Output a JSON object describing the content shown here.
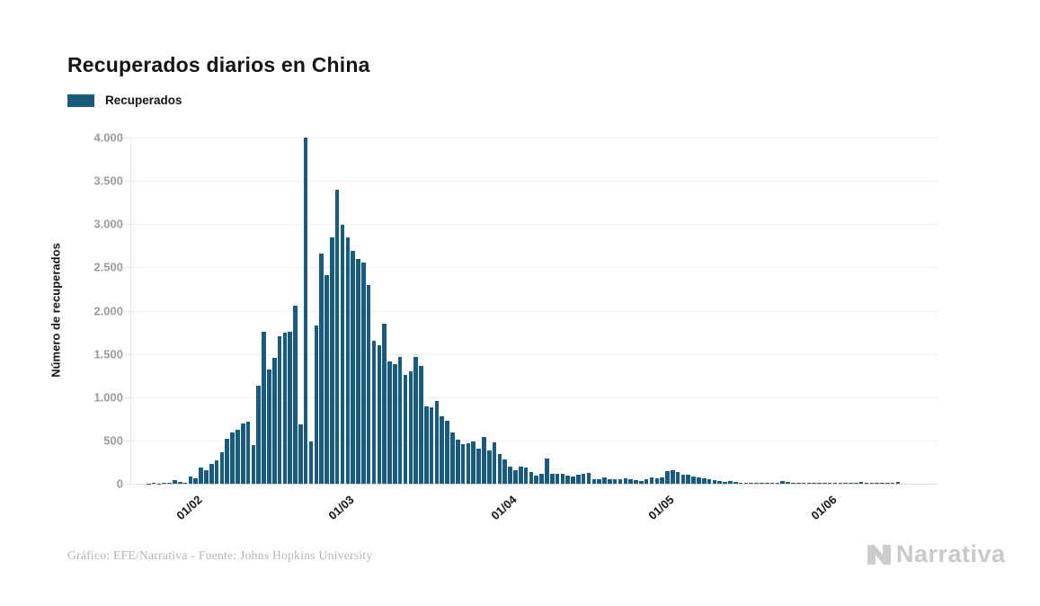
{
  "header": {
    "title": "Recuperados diarios en China"
  },
  "legend": {
    "label": "Recuperados",
    "swatch_color": "#1A5A7D"
  },
  "y_axis": {
    "title": "Número de recuperados",
    "tick_labels": [
      "4.000",
      "3.500",
      "3.000",
      "2.500",
      "2.000",
      "1.500",
      "1.000",
      "500",
      "0"
    ]
  },
  "x_axis": {
    "tick_labels": [
      "01/02",
      "01/03",
      "01/04",
      "01/05",
      "01/06"
    ]
  },
  "footer": {
    "credit": "Gráfico: EFE/Narrativa - Fuente: Johns Hopkins University"
  },
  "logo": {
    "text": "Narrativa"
  },
  "chart_data": {
    "type": "bar",
    "title": "Recuperados diarios en China",
    "series_name": "Recuperados",
    "ylabel": "Número de recuperados",
    "xlabel": "",
    "ylim": [
      0,
      4000
    ],
    "y_gridline_step": 500,
    "grid": true,
    "legend_position": "top-left",
    "bar_color": "#1A5A7D",
    "start_date": "23/01/2020",
    "frequency": "daily",
    "x_tick_positions": [
      {
        "label": "01/02",
        "day_index": 9
      },
      {
        "label": "01/03",
        "day_index": 38
      },
      {
        "label": "01/04",
        "day_index": 69
      },
      {
        "label": "01/05",
        "day_index": 99
      },
      {
        "label": "01/06",
        "day_index": 130
      }
    ],
    "values": [
      2,
      6,
      3,
      10,
      9,
      43,
      19,
      15,
      79,
      61,
      187,
      152,
      229,
      272,
      362,
      522,
      597,
      623,
      699,
      718,
      446,
      1135,
      1760,
      1321,
      1457,
      1707,
      1744,
      1756,
      2052,
      690,
      3995,
      488,
      1828,
      2661,
      2408,
      2846,
      3399,
      2991,
      2842,
      2692,
      2596,
      2551,
      2291,
      1652,
      1595,
      1849,
      1416,
      1377,
      1463,
      1257,
      1295,
      1464,
      1357,
      893,
      888,
      957,
      780,
      731,
      591,
      505,
      452,
      466,
      493,
      408,
      539,
      380,
      482,
      341,
      283,
      199,
      160,
      195,
      186,
      132,
      89,
      112,
      288,
      112,
      112,
      119,
      93,
      85,
      101,
      111,
      122,
      52,
      48,
      71,
      50,
      57,
      56,
      60,
      55,
      40,
      35,
      57,
      71,
      67,
      69,
      145,
      160,
      132,
      105,
      100,
      85,
      70,
      60,
      55,
      45,
      30,
      25,
      35,
      20,
      15,
      10,
      8,
      10,
      12,
      8,
      10,
      8,
      28,
      18,
      15,
      12,
      14,
      12,
      10,
      8,
      12,
      10,
      14,
      10,
      12,
      8,
      14,
      16,
      12,
      10,
      14,
      8,
      12,
      10,
      18
    ]
  }
}
